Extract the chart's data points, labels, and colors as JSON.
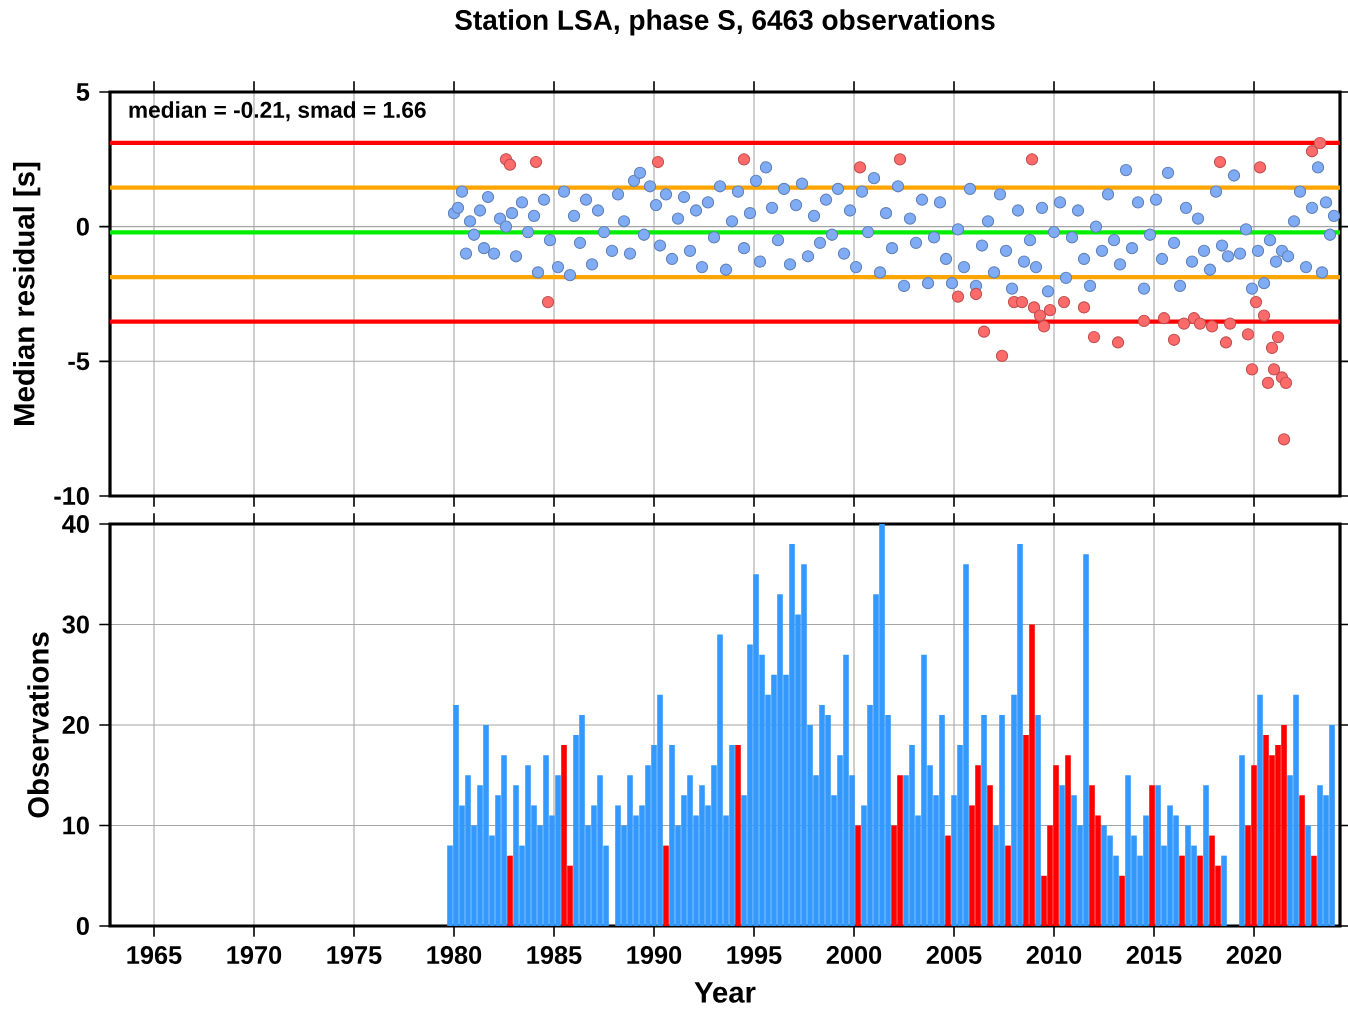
{
  "chart_data": [
    {
      "type": "scatter",
      "title": "Station LSA, phase S, 6463 observations",
      "ylabel": "Median residual [s]",
      "annotations": [
        "median = -0.21, smad = 1.66"
      ],
      "xlim": [
        1962.8,
        2024.3
      ],
      "xticks": [
        1965,
        1970,
        1975,
        1980,
        1985,
        1990,
        1995,
        2000,
        2005,
        2010,
        2015,
        2020
      ],
      "ylim": [
        -10,
        5
      ],
      "yticks": [
        -10,
        -5,
        0,
        5
      ],
      "tick_labels": "y",
      "grid": true,
      "marker": "circle",
      "ref_lines": [
        {
          "axis": "y",
          "value": 3.11,
          "color": "#ff0000"
        },
        {
          "axis": "y",
          "value": -3.53,
          "color": "#ff0000"
        },
        {
          "axis": "y",
          "value": 1.45,
          "color": "#ffa500"
        },
        {
          "axis": "y",
          "value": -1.87,
          "color": "#ffa500"
        },
        {
          "axis": "y",
          "value": -0.21,
          "color": "#00ee00"
        }
      ],
      "series": [
        {
          "color": "#80acf5",
          "x": [
            1980.0,
            1980.2,
            1980.4,
            1980.6,
            1980.8,
            1981.0,
            1981.3,
            1981.5,
            1981.7,
            1982.0,
            1982.3,
            1982.6,
            1982.9,
            1983.1,
            1983.4,
            1983.7,
            1984.0,
            1984.2,
            1984.5,
            1984.8,
            1985.2,
            1985.5,
            1985.8,
            1986.0,
            1986.3,
            1986.6,
            1986.9,
            1987.2,
            1987.5,
            1987.9,
            1988.2,
            1988.5,
            1988.8,
            1989.0,
            1989.3,
            1989.5,
            1989.8,
            1990.1,
            1990.3,
            1990.6,
            1990.9,
            1991.2,
            1991.5,
            1991.8,
            1992.1,
            1992.4,
            1992.7,
            1993.0,
            1993.3,
            1993.6,
            1993.9,
            1994.2,
            1994.5,
            1994.8,
            1995.1,
            1995.3,
            1995.6,
            1995.9,
            1996.2,
            1996.5,
            1996.8,
            1997.1,
            1997.4,
            1997.7,
            1998.0,
            1998.3,
            1998.6,
            1998.9,
            1999.2,
            1999.5,
            1999.8,
            2000.1,
            2000.4,
            2000.7,
            2001.0,
            2001.3,
            2001.6,
            2001.9,
            2002.2,
            2002.5,
            2002.8,
            2003.1,
            2003.4,
            2003.7,
            2004.0,
            2004.3,
            2004.6,
            2004.9,
            2005.2,
            2005.5,
            2005.8,
            2006.1,
            2006.4,
            2006.7,
            2007.0,
            2007.3,
            2007.6,
            2007.9,
            2008.2,
            2008.5,
            2008.8,
            2009.1,
            2009.4,
            2009.7,
            2010.0,
            2010.3,
            2010.6,
            2010.9,
            2011.2,
            2011.5,
            2011.8,
            2012.1,
            2012.4,
            2012.7,
            2013.0,
            2013.3,
            2013.6,
            2013.9,
            2014.2,
            2014.5,
            2014.8,
            2015.1,
            2015.4,
            2015.7,
            2016.0,
            2016.3,
            2016.6,
            2016.9,
            2017.2,
            2017.5,
            2017.8,
            2018.1,
            2018.4,
            2018.7,
            2019.0,
            2019.3,
            2019.6,
            2019.9,
            2020.2,
            2020.5,
            2020.8,
            2021.1,
            2021.4,
            2021.7,
            2022.0,
            2022.3,
            2022.6,
            2022.9,
            2023.2,
            2023.4,
            2023.6,
            2023.8,
            2024.0
          ],
          "values": [
            0.5,
            0.7,
            1.3,
            -1.0,
            0.2,
            -0.3,
            0.6,
            -0.8,
            1.1,
            -1.0,
            0.3,
            0.0,
            0.5,
            -1.1,
            0.9,
            -0.2,
            0.4,
            -1.7,
            1.0,
            -0.5,
            -1.5,
            1.3,
            -1.8,
            0.4,
            -0.6,
            1.0,
            -1.4,
            0.6,
            -0.2,
            -0.9,
            1.2,
            0.2,
            -1.0,
            1.7,
            2.0,
            -0.3,
            1.5,
            0.8,
            -0.7,
            1.2,
            -1.2,
            0.3,
            1.1,
            -0.9,
            0.6,
            -1.5,
            0.9,
            -0.4,
            1.5,
            -1.6,
            0.2,
            1.3,
            -0.8,
            0.5,
            1.7,
            -1.3,
            2.2,
            0.7,
            -0.5,
            1.4,
            -1.4,
            0.8,
            1.6,
            -1.1,
            0.4,
            -0.6,
            1.0,
            -0.3,
            1.4,
            -1.0,
            0.6,
            -1.5,
            1.3,
            -0.2,
            1.8,
            -1.7,
            0.5,
            -0.8,
            1.5,
            -2.2,
            0.3,
            -0.6,
            1.0,
            -2.1,
            -0.4,
            0.9,
            -1.2,
            -2.1,
            -0.1,
            -1.5,
            1.4,
            -2.2,
            -0.7,
            0.2,
            -1.7,
            1.2,
            -0.9,
            -2.3,
            0.6,
            -1.3,
            -0.5,
            -1.5,
            0.7,
            -2.4,
            -0.2,
            0.9,
            -1.9,
            -0.4,
            0.6,
            -1.2,
            -2.2,
            0.0,
            -0.9,
            1.2,
            -0.5,
            -1.4,
            2.1,
            -0.8,
            0.9,
            -2.3,
            -0.3,
            1.0,
            -1.2,
            2.0,
            -0.6,
            -2.2,
            0.7,
            -1.3,
            0.3,
            -0.9,
            -1.6,
            1.3,
            -0.7,
            -1.1,
            1.9,
            -1.0,
            -0.1,
            -2.3,
            -0.9,
            -2.1,
            -0.5,
            -1.3,
            -0.9,
            -1.1,
            0.2,
            1.3,
            -1.5,
            0.7,
            2.2,
            -1.7,
            0.9,
            -0.3,
            0.4
          ]
        },
        {
          "color": "#ff6b6b",
          "x": [
            1982.6,
            1982.8,
            1984.1,
            1984.7,
            1990.2,
            1994.5,
            2000.3,
            2002.3,
            2005.2,
            2006.1,
            2006.5,
            2007.4,
            2008.0,
            2008.4,
            2008.9,
            2009.0,
            2009.3,
            2009.5,
            2009.8,
            2010.5,
            2011.5,
            2012.0,
            2013.2,
            2014.5,
            2015.5,
            2016.0,
            2016.5,
            2017.0,
            2017.3,
            2017.9,
            2018.3,
            2018.6,
            2018.8,
            2019.7,
            2019.9,
            2020.1,
            2020.3,
            2020.5,
            2020.7,
            2020.9,
            2021.0,
            2021.2,
            2021.4,
            2021.5,
            2021.6,
            2022.9,
            2023.3
          ],
          "values": [
            2.5,
            2.3,
            2.4,
            -2.8,
            2.4,
            2.5,
            2.2,
            2.5,
            -2.6,
            -2.5,
            -3.9,
            -4.8,
            -2.8,
            -2.8,
            2.5,
            -3.0,
            -3.3,
            -3.7,
            -3.1,
            -2.8,
            -3.0,
            -4.1,
            -4.3,
            -3.5,
            -3.4,
            -4.2,
            -3.6,
            -3.4,
            -3.6,
            -3.7,
            2.4,
            -4.3,
            -3.6,
            -4.0,
            -5.3,
            -2.8,
            2.2,
            -3.3,
            -5.8,
            -4.5,
            -5.3,
            -4.1,
            -5.6,
            -7.9,
            -5.8,
            2.8,
            3.1
          ]
        }
      ]
    },
    {
      "type": "bar",
      "xlabel": "Year",
      "ylabel": "Observations",
      "xlim": [
        1962.8,
        2024.3
      ],
      "xticks": [
        1965,
        1970,
        1975,
        1980,
        1985,
        1990,
        1995,
        2000,
        2005,
        2010,
        2015,
        2020
      ],
      "ylim": [
        0,
        40
      ],
      "yticks": [
        0,
        10,
        20,
        30,
        40
      ],
      "grid": true,
      "series": [
        {
          "color": "#3399ff",
          "x": [
            1979.8,
            1980.1,
            1980.4,
            1980.7,
            1981.0,
            1981.3,
            1981.6,
            1981.9,
            1982.2,
            1982.5,
            1983.1,
            1983.4,
            1983.7,
            1984.0,
            1984.3,
            1984.6,
            1984.9,
            1985.2,
            1986.1,
            1986.4,
            1986.7,
            1987.0,
            1987.3,
            1987.6,
            1988.2,
            1988.5,
            1988.8,
            1989.1,
            1989.4,
            1989.7,
            1990.0,
            1990.3,
            1990.9,
            1991.2,
            1991.5,
            1991.8,
            1992.1,
            1992.4,
            1992.7,
            1993.0,
            1993.3,
            1993.6,
            1993.9,
            1994.5,
            1994.8,
            1995.1,
            1995.4,
            1995.7,
            1996.0,
            1996.3,
            1996.6,
            1996.9,
            1997.2,
            1997.5,
            1997.8,
            1998.1,
            1998.4,
            1998.7,
            1999.0,
            1999.3,
            1999.6,
            1999.9,
            2000.5,
            2000.8,
            2001.1,
            2001.4,
            2001.7,
            2002.6,
            2002.9,
            2003.2,
            2003.5,
            2003.8,
            2004.1,
            2004.4,
            2005.0,
            2005.3,
            2005.6,
            2006.5,
            2007.1,
            2007.4,
            2008.0,
            2008.3,
            2009.2,
            2010.4,
            2011.0,
            2011.3,
            2011.6,
            2012.5,
            2012.8,
            2013.1,
            2013.7,
            2014.0,
            2014.3,
            2014.6,
            2015.2,
            2015.5,
            2015.8,
            2016.1,
            2016.7,
            2017.0,
            2017.6,
            2018.5,
            2019.4,
            2020.3,
            2021.8,
            2022.1,
            2022.7,
            2023.3,
            2023.6,
            2023.9
          ],
          "values": [
            8,
            22,
            12,
            15,
            10,
            14,
            20,
            9,
            13,
            17,
            14,
            8,
            16,
            12,
            10,
            17,
            11,
            15,
            19,
            21,
            10,
            12,
            15,
            8,
            12,
            10,
            15,
            11,
            12,
            16,
            18,
            23,
            18,
            10,
            13,
            15,
            11,
            14,
            12,
            16,
            29,
            11,
            18,
            13,
            28,
            35,
            27,
            23,
            25,
            33,
            25,
            38,
            31,
            36,
            20,
            15,
            22,
            21,
            13,
            17,
            27,
            15,
            12,
            22,
            33,
            40,
            21,
            15,
            18,
            11,
            27,
            16,
            13,
            21,
            13,
            18,
            36,
            21,
            10,
            21,
            23,
            38,
            21,
            14,
            13,
            10,
            37,
            10,
            9,
            7,
            15,
            9,
            7,
            11,
            14,
            8,
            12,
            11,
            10,
            8,
            14,
            7,
            17,
            23,
            15,
            23,
            10,
            14,
            13,
            20
          ]
        },
        {
          "color": "#ff0000",
          "x": [
            1982.8,
            1985.5,
            1985.8,
            1990.6,
            1994.2,
            2000.2,
            2002.0,
            2002.3,
            2004.7,
            2005.9,
            2006.2,
            2006.8,
            2007.7,
            2008.6,
            2008.9,
            2009.5,
            2009.8,
            2010.1,
            2010.7,
            2011.9,
            2012.2,
            2013.4,
            2014.9,
            2016.4,
            2017.3,
            2017.9,
            2018.2,
            2019.7,
            2020.0,
            2020.6,
            2020.9,
            2021.2,
            2021.5,
            2022.4,
            2023.0
          ],
          "values": [
            7,
            18,
            6,
            8,
            18,
            10,
            10,
            15,
            9,
            12,
            16,
            14,
            8,
            19,
            30,
            5,
            10,
            16,
            17,
            14,
            11,
            5,
            14,
            7,
            7,
            9,
            6,
            10,
            16,
            19,
            17,
            18,
            20,
            13,
            7
          ]
        }
      ]
    }
  ]
}
